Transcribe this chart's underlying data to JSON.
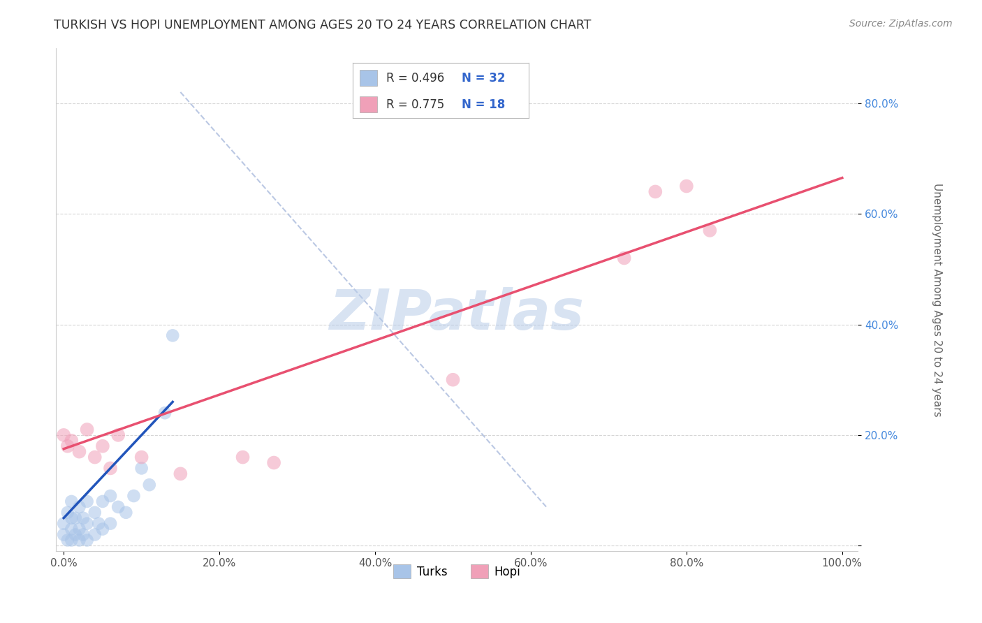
{
  "title": "TURKISH VS HOPI UNEMPLOYMENT AMONG AGES 20 TO 24 YEARS CORRELATION CHART",
  "source": "Source: ZipAtlas.com",
  "ylabel": "Unemployment Among Ages 20 to 24 years",
  "xlim": [
    0.0,
    1.0
  ],
  "ylim": [
    0.0,
    0.9
  ],
  "xtick_vals": [
    0.0,
    0.2,
    0.4,
    0.6,
    0.8,
    1.0
  ],
  "ytick_vals": [
    0.0,
    0.2,
    0.4,
    0.6,
    0.8
  ],
  "legend_r1": "R = 0.496",
  "legend_n1": "N = 32",
  "legend_r2": "R = 0.775",
  "legend_n2": "N = 18",
  "turks_color": "#a8c4e8",
  "hopi_color": "#f0a0b8",
  "turks_line_color": "#2255bb",
  "hopi_line_color": "#e85070",
  "ref_line_color": "#aabbdd",
  "watermark": "ZIPatlas",
  "watermark_color": "#b8cce8",
  "background_color": "#ffffff",
  "grid_color": "#cccccc",
  "turks_x": [
    0.0,
    0.0,
    0.005,
    0.005,
    0.01,
    0.01,
    0.01,
    0.01,
    0.015,
    0.015,
    0.02,
    0.02,
    0.02,
    0.025,
    0.025,
    0.03,
    0.03,
    0.03,
    0.04,
    0.04,
    0.045,
    0.05,
    0.05,
    0.06,
    0.06,
    0.07,
    0.08,
    0.09,
    0.1,
    0.11,
    0.13,
    0.14
  ],
  "turks_y": [
    0.02,
    0.04,
    0.01,
    0.06,
    0.01,
    0.03,
    0.05,
    0.08,
    0.02,
    0.05,
    0.01,
    0.03,
    0.07,
    0.02,
    0.05,
    0.01,
    0.04,
    0.08,
    0.02,
    0.06,
    0.04,
    0.03,
    0.08,
    0.04,
    0.09,
    0.07,
    0.06,
    0.09,
    0.14,
    0.11,
    0.24,
    0.38
  ],
  "hopi_x": [
    0.0,
    0.005,
    0.01,
    0.02,
    0.03,
    0.04,
    0.05,
    0.06,
    0.07,
    0.1,
    0.15,
    0.23,
    0.27,
    0.5,
    0.72,
    0.76,
    0.8,
    0.83
  ],
  "hopi_y": [
    0.2,
    0.18,
    0.19,
    0.17,
    0.21,
    0.16,
    0.18,
    0.14,
    0.2,
    0.16,
    0.13,
    0.16,
    0.15,
    0.3,
    0.52,
    0.64,
    0.65,
    0.57
  ],
  "turks_line_x": [
    0.0,
    0.14
  ],
  "turks_line_y": [
    0.05,
    0.26
  ],
  "hopi_line_x": [
    0.0,
    1.0
  ],
  "hopi_line_y": [
    0.175,
    0.665
  ],
  "ref_line_x": [
    0.18,
    0.65
  ],
  "ref_line_y": [
    0.73,
    0.07
  ]
}
